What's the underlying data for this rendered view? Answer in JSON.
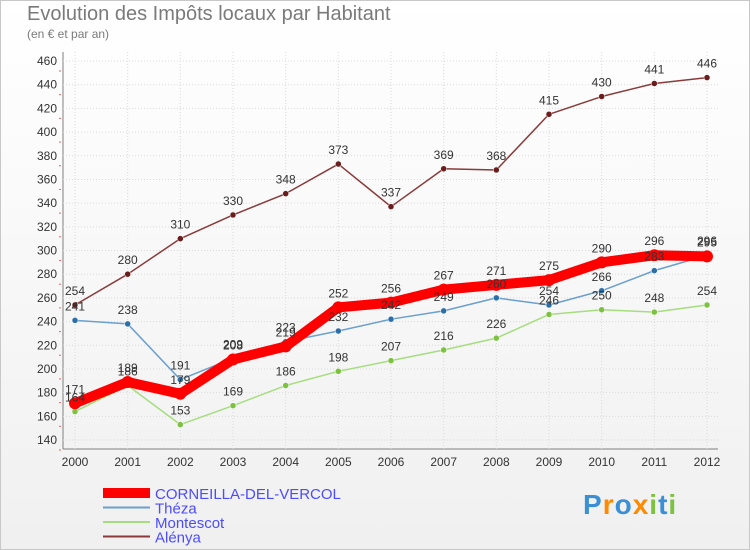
{
  "chart_data": {
    "type": "line",
    "title": "Evolution des Impôts locaux par Habitant",
    "subtitle": "(en € et par an)",
    "xlabel": "",
    "ylabel": "",
    "x": [
      "2000",
      "2001",
      "2002",
      "2003",
      "2004",
      "2005",
      "2006",
      "2007",
      "2008",
      "2009",
      "2010",
      "2011",
      "2012"
    ],
    "ylim": [
      140,
      460
    ],
    "yticks": [
      140,
      160,
      180,
      200,
      220,
      240,
      260,
      280,
      300,
      320,
      340,
      360,
      380,
      400,
      420,
      440,
      460
    ],
    "legend_position": "bottom-left",
    "series": [
      {
        "name": "CORNEILLA-DEL-VERCOL",
        "color": "#ff0000",
        "marker": "#ff0000",
        "values": [
          171,
          189,
          179,
          208,
          219,
          252,
          256,
          267,
          271,
          275,
          290,
          296,
          295
        ]
      },
      {
        "name": "Théza",
        "color": "#6a9fd0",
        "marker": "#2c6fa8",
        "values": [
          241,
          238,
          191,
          209,
          223,
          232,
          242,
          249,
          260,
          254,
          266,
          283,
          296
        ]
      },
      {
        "name": "Montescot",
        "color": "#a6dd7f",
        "marker": "#7cc240",
        "values": [
          164,
          186,
          153,
          169,
          186,
          198,
          207,
          216,
          226,
          246,
          250,
          248,
          254
        ]
      },
      {
        "name": "Alénya",
        "color": "#8a3a3a",
        "marker": "#6b1c1c",
        "values": [
          254,
          280,
          310,
          330,
          348,
          373,
          337,
          369,
          368,
          415,
          430,
          441,
          446
        ]
      }
    ],
    "data_labels": [
      {
        "series": 3,
        "labels": [
          "254",
          "280",
          "310",
          "330",
          "348",
          "373",
          "337",
          "369",
          "368",
          "415",
          "430",
          "441",
          "446"
        ]
      },
      {
        "series": 1,
        "labels": [
          "241",
          "238",
          "191",
          "209",
          "223",
          "232",
          "242",
          "249",
          "260",
          "254",
          "266",
          "283",
          "296"
        ]
      },
      {
        "series": 2,
        "labels": [
          "164",
          "186",
          "153",
          "169",
          "186",
          "198",
          "207",
          "216",
          "226",
          "246",
          "250",
          "248",
          "254"
        ]
      },
      {
        "series": 0,
        "labels": [
          "171",
          "189",
          "179",
          "208",
          "219",
          "252",
          "256",
          "267",
          "271",
          "275",
          "290",
          "296",
          "295"
        ]
      }
    ]
  },
  "legend": {
    "entries": [
      {
        "label": "CORNEILLA-DEL-VERCOL",
        "color": "#ff0000",
        "text_color": "#4c4cff"
      },
      {
        "label": "Théza",
        "color": "#6a9fd0",
        "text_color": "#4c4cff"
      },
      {
        "label": "Montescot",
        "color": "#a6dd7f",
        "text_color": "#4c4cff"
      },
      {
        "label": "Alénya",
        "color": "#8a3a3a",
        "text_color": "#4c4cff"
      }
    ]
  },
  "logo": {
    "letters": [
      "P",
      "r",
      "o",
      "x",
      "i",
      "t",
      "i"
    ],
    "colors": [
      "#3a8fd6",
      "#ff8a00",
      "#3a8fd6",
      "#ff8a00",
      "#7cc240",
      "#3a8fd6",
      "#7cc240"
    ]
  }
}
